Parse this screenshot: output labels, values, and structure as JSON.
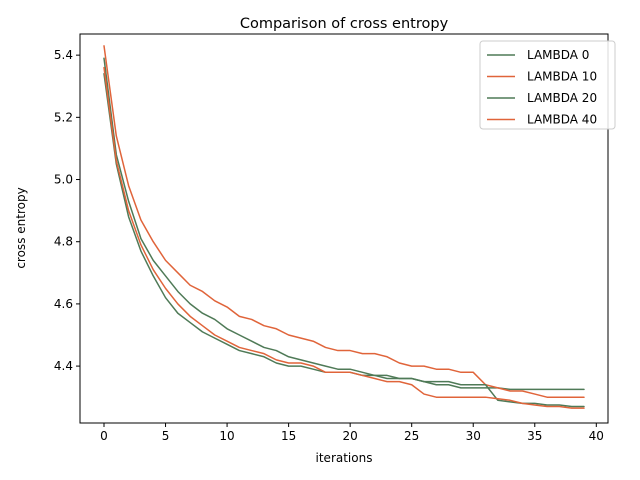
{
  "chart_data": {
    "type": "line",
    "title": "Comparison of cross entropy",
    "xlabel": "iterations",
    "ylabel": "cross entropy",
    "xlim": [
      -1.95,
      40.95
    ],
    "ylim": [
      4.217,
      5.468
    ],
    "xticks": [
      0,
      5,
      10,
      15,
      20,
      25,
      30,
      35,
      40
    ],
    "yticks": [
      4.4,
      4.6,
      4.8,
      5.0,
      5.2,
      5.4
    ],
    "ytick_labels": [
      "4.4",
      "4.6",
      "4.8",
      "5.0",
      "5.2",
      "5.4"
    ],
    "grid": false,
    "legend_position": "top-right",
    "x": [
      0,
      1,
      2,
      3,
      4,
      5,
      6,
      7,
      8,
      9,
      10,
      11,
      12,
      13,
      14,
      15,
      16,
      17,
      18,
      19,
      20,
      21,
      22,
      23,
      24,
      25,
      26,
      27,
      28,
      29,
      30,
      31,
      32,
      33,
      34,
      35,
      36,
      37,
      38,
      39
    ],
    "series": [
      {
        "name": "LAMBDA 0",
        "color": "#4f7a57",
        "values": [
          5.39,
          5.08,
          4.93,
          4.81,
          4.74,
          4.69,
          4.64,
          4.6,
          4.57,
          4.55,
          4.52,
          4.5,
          4.48,
          4.46,
          4.45,
          4.43,
          4.42,
          4.41,
          4.4,
          4.39,
          4.39,
          4.38,
          4.37,
          4.37,
          4.36,
          4.36,
          4.35,
          4.34,
          4.34,
          4.33,
          4.33,
          4.33,
          4.33,
          4.325,
          4.325,
          4.325,
          4.325,
          4.325,
          4.325,
          4.325
        ]
      },
      {
        "name": "LAMBDA 10",
        "color": "#e0643a",
        "values": [
          5.43,
          5.14,
          4.98,
          4.87,
          4.8,
          4.74,
          4.7,
          4.66,
          4.64,
          4.61,
          4.59,
          4.56,
          4.55,
          4.53,
          4.52,
          4.5,
          4.49,
          4.48,
          4.46,
          4.45,
          4.45,
          4.44,
          4.44,
          4.43,
          4.41,
          4.4,
          4.4,
          4.39,
          4.39,
          4.38,
          4.38,
          4.34,
          4.33,
          4.32,
          4.32,
          4.31,
          4.3,
          4.3,
          4.3,
          4.3
        ]
      },
      {
        "name": "LAMBDA 20",
        "color": "#4f7a57",
        "values": [
          5.34,
          5.05,
          4.88,
          4.77,
          4.69,
          4.62,
          4.57,
          4.54,
          4.51,
          4.49,
          4.47,
          4.45,
          4.44,
          4.43,
          4.41,
          4.4,
          4.4,
          4.39,
          4.38,
          4.38,
          4.38,
          4.37,
          4.37,
          4.36,
          4.36,
          4.36,
          4.35,
          4.35,
          4.35,
          4.34,
          4.34,
          4.34,
          4.29,
          4.285,
          4.28,
          4.28,
          4.275,
          4.275,
          4.27,
          4.27
        ]
      },
      {
        "name": "LAMBDA 40",
        "color": "#e0643a",
        "values": [
          5.36,
          5.06,
          4.9,
          4.79,
          4.71,
          4.65,
          4.6,
          4.56,
          4.53,
          4.5,
          4.48,
          4.46,
          4.45,
          4.44,
          4.42,
          4.41,
          4.41,
          4.4,
          4.38,
          4.38,
          4.38,
          4.37,
          4.36,
          4.35,
          4.35,
          4.34,
          4.31,
          4.3,
          4.3,
          4.3,
          4.3,
          4.3,
          4.295,
          4.29,
          4.28,
          4.275,
          4.27,
          4.27,
          4.265,
          4.265
        ]
      }
    ]
  }
}
